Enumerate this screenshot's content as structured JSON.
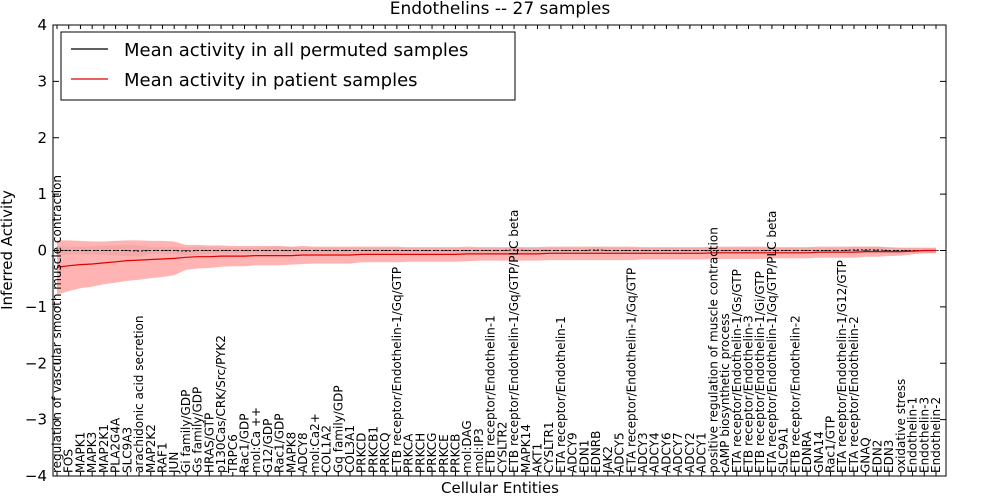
{
  "chart_data": {
    "type": "line",
    "title": "Endothelins -- 27 samples",
    "xlabel": "Cellular Entities",
    "ylabel": "Inferred Activity",
    "ylim": [
      -4,
      4
    ],
    "yticks": [
      -4,
      -3,
      -2,
      -1,
      0,
      1,
      2,
      3,
      4
    ],
    "grid": false,
    "legend": {
      "placement": "top-left",
      "entries": [
        "Mean activity in all permuted samples",
        "Mean activity in patient samples"
      ]
    },
    "colors": {
      "permuted": "#000000",
      "patient": "#dd0000",
      "patient_band": "#ff9999",
      "permuted_band": "#c8c8c8",
      "zero_line": "#555555"
    },
    "x_labels": [
      "regulation of vascular smooth muscle contraction",
      "FOS",
      "MAPK1",
      "MAPK3",
      "MAP2K1",
      "PLA2G4A",
      "SLC9A3",
      "arachidonic acid secretion",
      "MAP2K2",
      "RAF1",
      "JUN",
      "Gi family/GDP",
      "Gs family/GDP",
      "HRAS/GTP",
      "p130Cas/CRK/Src/PYK2",
      "TRPC6",
      "Rac1/GDP",
      "mol:Ca ++",
      "G12/GDP",
      "Rac1/GDP",
      "MAPK8",
      "ADCY8",
      "mol:Ca2+",
      "COL1A2",
      "Gq family/GDP",
      "COL3A1",
      "PRKCD",
      "PRKCB1",
      "PRKCQ",
      "ETB receptor/Endothelin-1/Gq/GTP",
      "PRKCA",
      "PRKCH",
      "PRKCG",
      "PRKCE",
      "PRKCB",
      "mol:DAG",
      "mol:IP3",
      "ETB receptor/Endothelin-1",
      "CYSLTR2",
      "ETB receptor/Endothelin-1/Gq/GTP/PLC beta",
      "MAPK14",
      "AKT1",
      "CYSLTR1",
      "ETA receptor/Endothelin-1",
      "ADCY9",
      "EDN1",
      "EDNRB",
      "JAK2",
      "ADCY5",
      "ETA receptor/Endothelin-1/Gq/GTP",
      "ADCY3",
      "ADCY4",
      "ADCY6",
      "ADCY7",
      "ADCY2",
      "ADCY1",
      "positive regulation of muscle contraction",
      "cAMP biosynthetic process",
      "ETA receptor/Endothelin-1/Gs/GTP",
      "ETB receptor/Endothelin-3",
      "ETB receptor/Endothelin-1/Gi/GTP",
      "ETA receptor/Endothelin-1/Gq/GTP/PLC beta",
      "SLC9A1",
      "ETB receptor/Endothelin-2",
      "EDNRA",
      "GNA14",
      "Rac1/GTP",
      "ETA receptor/Endothelin-1/G12/GTP",
      "ETA receptor/Endothelin-2",
      "GNAQ",
      "EDN2",
      "EDN3",
      "oxidative stress",
      "Endothelin-1",
      "Endothelin-3",
      "Endothelin-2"
    ],
    "series": [
      {
        "name": "Mean activity in all permuted samples",
        "values": [
          0.0,
          0.0,
          0.0,
          0.0,
          0.0,
          0.0,
          0.0,
          -0.01,
          0.0,
          0.0,
          0.0,
          -0.01,
          0.0,
          0.0,
          0.0,
          0.0,
          0.0,
          0.0,
          0.0,
          0.0,
          0.0,
          0.0,
          0.0,
          0.0,
          0.0,
          0.0,
          0.0,
          0.0,
          0.0,
          0.0,
          0.0,
          0.0,
          0.0,
          0.0,
          0.0,
          0.0,
          0.0,
          0.0,
          0.0,
          0.01,
          0.0,
          0.0,
          0.0,
          0.0,
          0.0,
          0.0,
          0.01,
          0.0,
          0.0,
          0.0,
          0.0,
          0.0,
          0.0,
          0.0,
          0.0,
          0.0,
          0.0,
          0.0,
          0.0,
          0.0,
          0.0,
          0.0,
          0.0,
          0.0,
          0.0,
          0.0,
          0.0,
          0.0,
          0.01,
          0.01,
          0.01,
          0.0,
          0.0,
          0.0,
          0.0,
          0.0
        ],
        "band": [
          0.08,
          0.07,
          0.07,
          0.07,
          0.08,
          0.09,
          0.1,
          0.1,
          0.06,
          0.06,
          0.06,
          0.07,
          0.07,
          0.06,
          0.05,
          0.05,
          0.05,
          0.05,
          0.06,
          0.07,
          0.06,
          0.05,
          0.05,
          0.05,
          0.05,
          0.05,
          0.05,
          0.05,
          0.05,
          0.05,
          0.04,
          0.04,
          0.04,
          0.04,
          0.04,
          0.04,
          0.04,
          0.04,
          0.04,
          0.05,
          0.05,
          0.05,
          0.05,
          0.05,
          0.05,
          0.05,
          0.05,
          0.05,
          0.05,
          0.05,
          0.05,
          0.05,
          0.05,
          0.05,
          0.05,
          0.05,
          0.05,
          0.05,
          0.05,
          0.05,
          0.05,
          0.05,
          0.05,
          0.05,
          0.05,
          0.05,
          0.05,
          0.05,
          0.06,
          0.06,
          0.06,
          0.05,
          0.05,
          0.05,
          0.05,
          0.05
        ]
      },
      {
        "name": "Mean activity in patient samples",
        "values": [
          -0.3,
          -0.27,
          -0.25,
          -0.24,
          -0.22,
          -0.2,
          -0.18,
          -0.17,
          -0.16,
          -0.15,
          -0.14,
          -0.12,
          -0.11,
          -0.11,
          -0.1,
          -0.1,
          -0.1,
          -0.09,
          -0.09,
          -0.09,
          -0.09,
          -0.08,
          -0.08,
          -0.08,
          -0.08,
          -0.08,
          -0.07,
          -0.07,
          -0.07,
          -0.07,
          -0.07,
          -0.07,
          -0.07,
          -0.07,
          -0.07,
          -0.06,
          -0.06,
          -0.06,
          -0.06,
          -0.06,
          -0.06,
          -0.06,
          -0.05,
          -0.05,
          -0.05,
          -0.05,
          -0.05,
          -0.05,
          -0.05,
          -0.05,
          -0.05,
          -0.05,
          -0.05,
          -0.05,
          -0.05,
          -0.05,
          -0.04,
          -0.04,
          -0.04,
          -0.04,
          -0.04,
          -0.04,
          -0.04,
          -0.04,
          -0.04,
          -0.03,
          -0.03,
          -0.03,
          -0.03,
          -0.02,
          -0.02,
          -0.02,
          -0.02,
          -0.01,
          0.0,
          0.0
        ],
        "band": [
          0.48,
          0.45,
          0.42,
          0.4,
          0.38,
          0.37,
          0.36,
          0.35,
          0.33,
          0.32,
          0.3,
          0.22,
          0.21,
          0.2,
          0.19,
          0.18,
          0.18,
          0.17,
          0.17,
          0.17,
          0.16,
          0.16,
          0.15,
          0.15,
          0.15,
          0.15,
          0.14,
          0.14,
          0.14,
          0.14,
          0.13,
          0.13,
          0.13,
          0.13,
          0.13,
          0.13,
          0.12,
          0.12,
          0.12,
          0.12,
          0.12,
          0.12,
          0.12,
          0.12,
          0.12,
          0.12,
          0.12,
          0.12,
          0.12,
          0.12,
          0.11,
          0.11,
          0.11,
          0.11,
          0.11,
          0.11,
          0.11,
          0.11,
          0.11,
          0.11,
          0.11,
          0.1,
          0.1,
          0.1,
          0.1,
          0.1,
          0.1,
          0.1,
          0.1,
          0.09,
          0.09,
          0.08,
          0.07,
          0.06,
          0.05,
          0.05
        ]
      }
    ]
  }
}
